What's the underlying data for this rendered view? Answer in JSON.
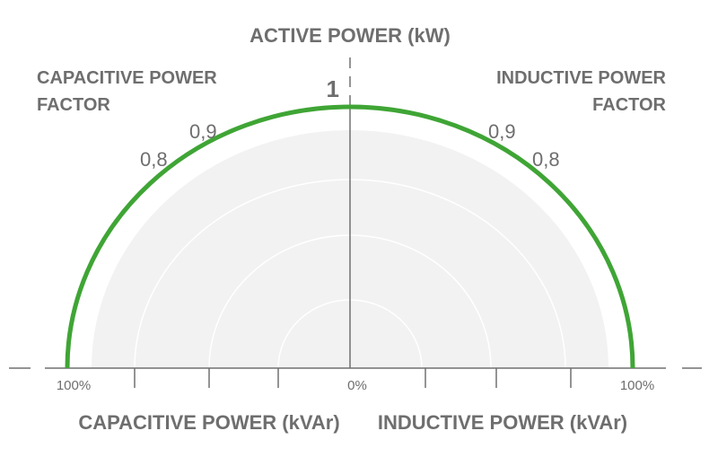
{
  "title_top": "ACTIVE POWER (kW)",
  "left_heading": [
    "CAPACITIVE POWER",
    "FACTOR"
  ],
  "right_heading": [
    "INDUCTIVE POWER",
    "FACTOR"
  ],
  "unity_label": "1",
  "left_ticks": [
    "0,9",
    "0,8"
  ],
  "right_ticks": [
    "0,9",
    "0,8"
  ],
  "axis": {
    "left": "100%",
    "center": "0%",
    "right": "100%"
  },
  "bottom_left": "CAPACITIVE POWER (kVAr)",
  "bottom_right": "INDUCTIVE POWER (kVAr)",
  "colors": {
    "arc": "#3fa535",
    "axis": "#707070",
    "fill": "#f2f2f2",
    "grid": "#ffffff"
  }
}
